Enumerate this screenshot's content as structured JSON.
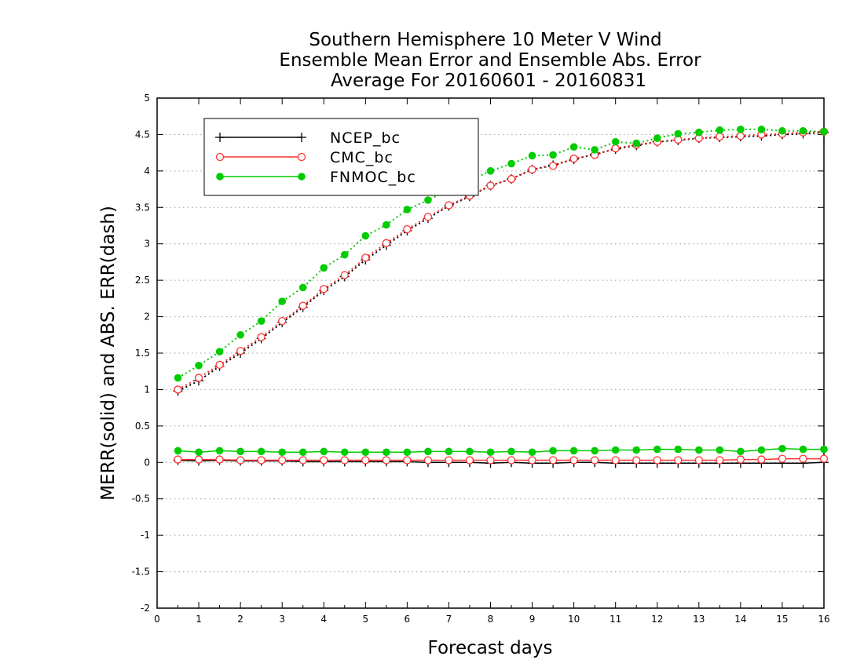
{
  "chart_data": {
    "type": "line",
    "title": [
      "Southern Hemisphere 10 Meter V Wind",
      "Ensemble Mean Error and Ensemble Abs. Error",
      "Average For 20160601 - 20160831"
    ],
    "xlabel": "Forecast days",
    "ylabel": "MERR(solid) and ABS. ERR(dash)",
    "xlim": [
      0,
      16
    ],
    "ylim": [
      -2,
      5
    ],
    "xticks": [
      0,
      1,
      2,
      3,
      4,
      5,
      6,
      7,
      8,
      9,
      10,
      11,
      12,
      13,
      14,
      15,
      16
    ],
    "yticks": [
      -2,
      -1.5,
      -1,
      -0.5,
      0,
      0.5,
      1,
      1.5,
      2,
      2.5,
      3,
      3.5,
      4,
      4.5,
      5
    ],
    "ytick_labels": [
      "-2",
      "-1.5",
      "-1",
      "-0.5",
      "0",
      "0.5",
      "1",
      "1.5",
      "2",
      "2.5",
      "3",
      "3.5",
      "4",
      "4.5",
      "5"
    ],
    "grid": "horizontal dotted",
    "legend_position": "top-left",
    "x": [
      0.5,
      1,
      1.5,
      2,
      2.5,
      3,
      3.5,
      4,
      4.5,
      5,
      5.5,
      6,
      6.5,
      7,
      7.5,
      8,
      8.5,
      9,
      9.5,
      10,
      10.5,
      11,
      11.5,
      12,
      12.5,
      13,
      13.5,
      14,
      14.5,
      15,
      15.5,
      16
    ],
    "series": [
      {
        "name": "NCEP_bc",
        "color": "#000000",
        "marker": "plus",
        "merr": [
          0.03,
          0.02,
          0.03,
          0.02,
          0.02,
          0.02,
          0.01,
          0.01,
          0.01,
          0.01,
          0.01,
          0.01,
          0.0,
          0.0,
          0.0,
          -0.01,
          0.0,
          -0.01,
          -0.01,
          0.0,
          0.0,
          -0.01,
          -0.01,
          -0.01,
          -0.01,
          -0.01,
          -0.01,
          -0.01,
          -0.01,
          -0.01,
          -0.01,
          0.0
        ],
        "abs_err": [
          0.98,
          1.12,
          1.32,
          1.5,
          1.7,
          1.92,
          2.13,
          2.36,
          2.55,
          2.78,
          2.98,
          3.18,
          3.35,
          3.52,
          3.65,
          3.8,
          3.89,
          4.02,
          4.08,
          4.16,
          4.23,
          4.3,
          4.35,
          4.4,
          4.42,
          4.45,
          4.46,
          4.47,
          4.48,
          4.5,
          4.51,
          4.53
        ]
      },
      {
        "name": "CMC_bc",
        "color": "#ff3333",
        "marker": "open-circle",
        "merr": [
          0.04,
          0.04,
          0.04,
          0.03,
          0.03,
          0.03,
          0.03,
          0.03,
          0.03,
          0.03,
          0.03,
          0.03,
          0.03,
          0.03,
          0.03,
          0.03,
          0.03,
          0.03,
          0.03,
          0.03,
          0.03,
          0.03,
          0.03,
          0.03,
          0.03,
          0.03,
          0.03,
          0.04,
          0.04,
          0.05,
          0.05,
          0.05
        ],
        "abs_err": [
          1.0,
          1.16,
          1.34,
          1.53,
          1.72,
          1.94,
          2.15,
          2.38,
          2.57,
          2.81,
          3.01,
          3.2,
          3.37,
          3.53,
          3.66,
          3.8,
          3.89,
          4.02,
          4.07,
          4.17,
          4.22,
          4.31,
          4.36,
          4.4,
          4.43,
          4.45,
          4.47,
          4.48,
          4.5,
          4.51,
          4.53,
          4.54
        ]
      },
      {
        "name": "FNMOC_bc",
        "color": "#00cc00",
        "marker": "filled-circle",
        "merr": [
          0.16,
          0.14,
          0.16,
          0.15,
          0.15,
          0.14,
          0.14,
          0.15,
          0.14,
          0.14,
          0.14,
          0.14,
          0.15,
          0.15,
          0.15,
          0.14,
          0.15,
          0.14,
          0.16,
          0.16,
          0.16,
          0.17,
          0.17,
          0.18,
          0.18,
          0.17,
          0.17,
          0.15,
          0.17,
          0.19,
          0.18,
          0.18
        ],
        "abs_err": [
          1.16,
          1.33,
          1.52,
          1.75,
          1.94,
          2.21,
          2.4,
          2.67,
          2.85,
          3.11,
          3.26,
          3.47,
          3.6,
          3.74,
          3.87,
          4.0,
          4.1,
          4.21,
          4.22,
          4.33,
          4.29,
          4.4,
          4.38,
          4.45,
          4.51,
          4.53,
          4.56,
          4.57,
          4.57,
          4.55,
          4.55,
          4.54
        ]
      }
    ]
  }
}
